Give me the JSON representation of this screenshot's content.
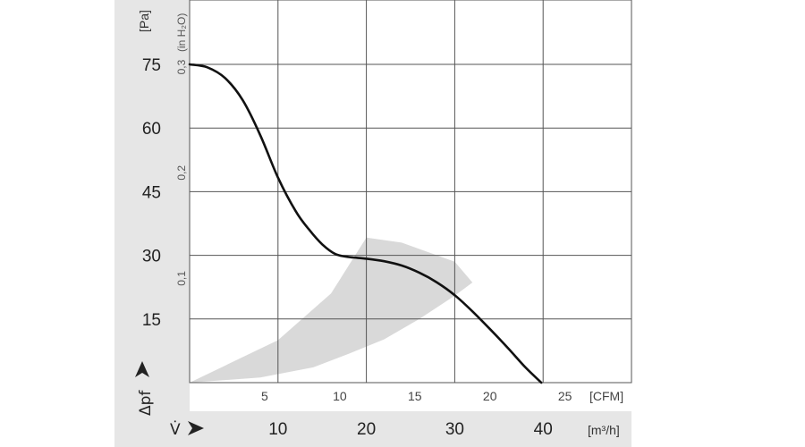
{
  "chart_data": {
    "type": "line",
    "title": "",
    "x_axis_primary": {
      "unit_label": "[m³/h]",
      "symbol": "V̇",
      "ticks": [
        10,
        20,
        30,
        40
      ],
      "range": [
        0,
        50
      ]
    },
    "x_axis_secondary": {
      "unit_label": "[CFM]",
      "ticks": [
        5,
        10,
        15,
        20,
        25
      ],
      "range": [
        0,
        29.43
      ]
    },
    "y_axis_primary": {
      "unit_label": "[Pa]",
      "symbol": "Δpf",
      "ticks": [
        15,
        30,
        45,
        60,
        75
      ],
      "range": [
        0,
        75
      ]
    },
    "y_axis_secondary": {
      "unit_label": "(in H₂O)",
      "ticks": [
        "0,1",
        "0,2",
        "0,3"
      ],
      "tick_values_pa": [
        24.9,
        49.8,
        74.7
      ]
    },
    "grid": true,
    "series": [
      {
        "color": "#111111",
        "x": [
          0,
          2,
          4,
          6,
          8,
          10,
          12,
          13.5,
          15,
          16.5,
          18,
          18.5,
          19,
          20,
          22,
          24,
          26,
          28,
          30,
          32,
          34,
          36,
          38,
          39.8
        ],
        "y": [
          75,
          74.3,
          71.8,
          66.6,
          58.3,
          48.3,
          40.4,
          36.1,
          32.6,
          30.3,
          29.6,
          29.5,
          29.4,
          29.2,
          28.6,
          27.6,
          25.9,
          23.6,
          20.6,
          16.8,
          12.6,
          8.2,
          3.6,
          0
        ]
      }
    ],
    "shaded_region": {
      "color": "#d9d9d9",
      "upper": {
        "x": [
          0,
          10,
          16,
          20,
          24,
          28,
          30,
          32
        ],
        "y": [
          0,
          10,
          21,
          34.2,
          33,
          30,
          28.5,
          23.6
        ]
      },
      "lower": {
        "x": [
          32,
          30,
          26,
          22,
          18,
          14,
          8,
          0
        ],
        "y": [
          23.6,
          20.5,
          15,
          10.2,
          6.8,
          3.6,
          1.2,
          0
        ]
      }
    }
  }
}
